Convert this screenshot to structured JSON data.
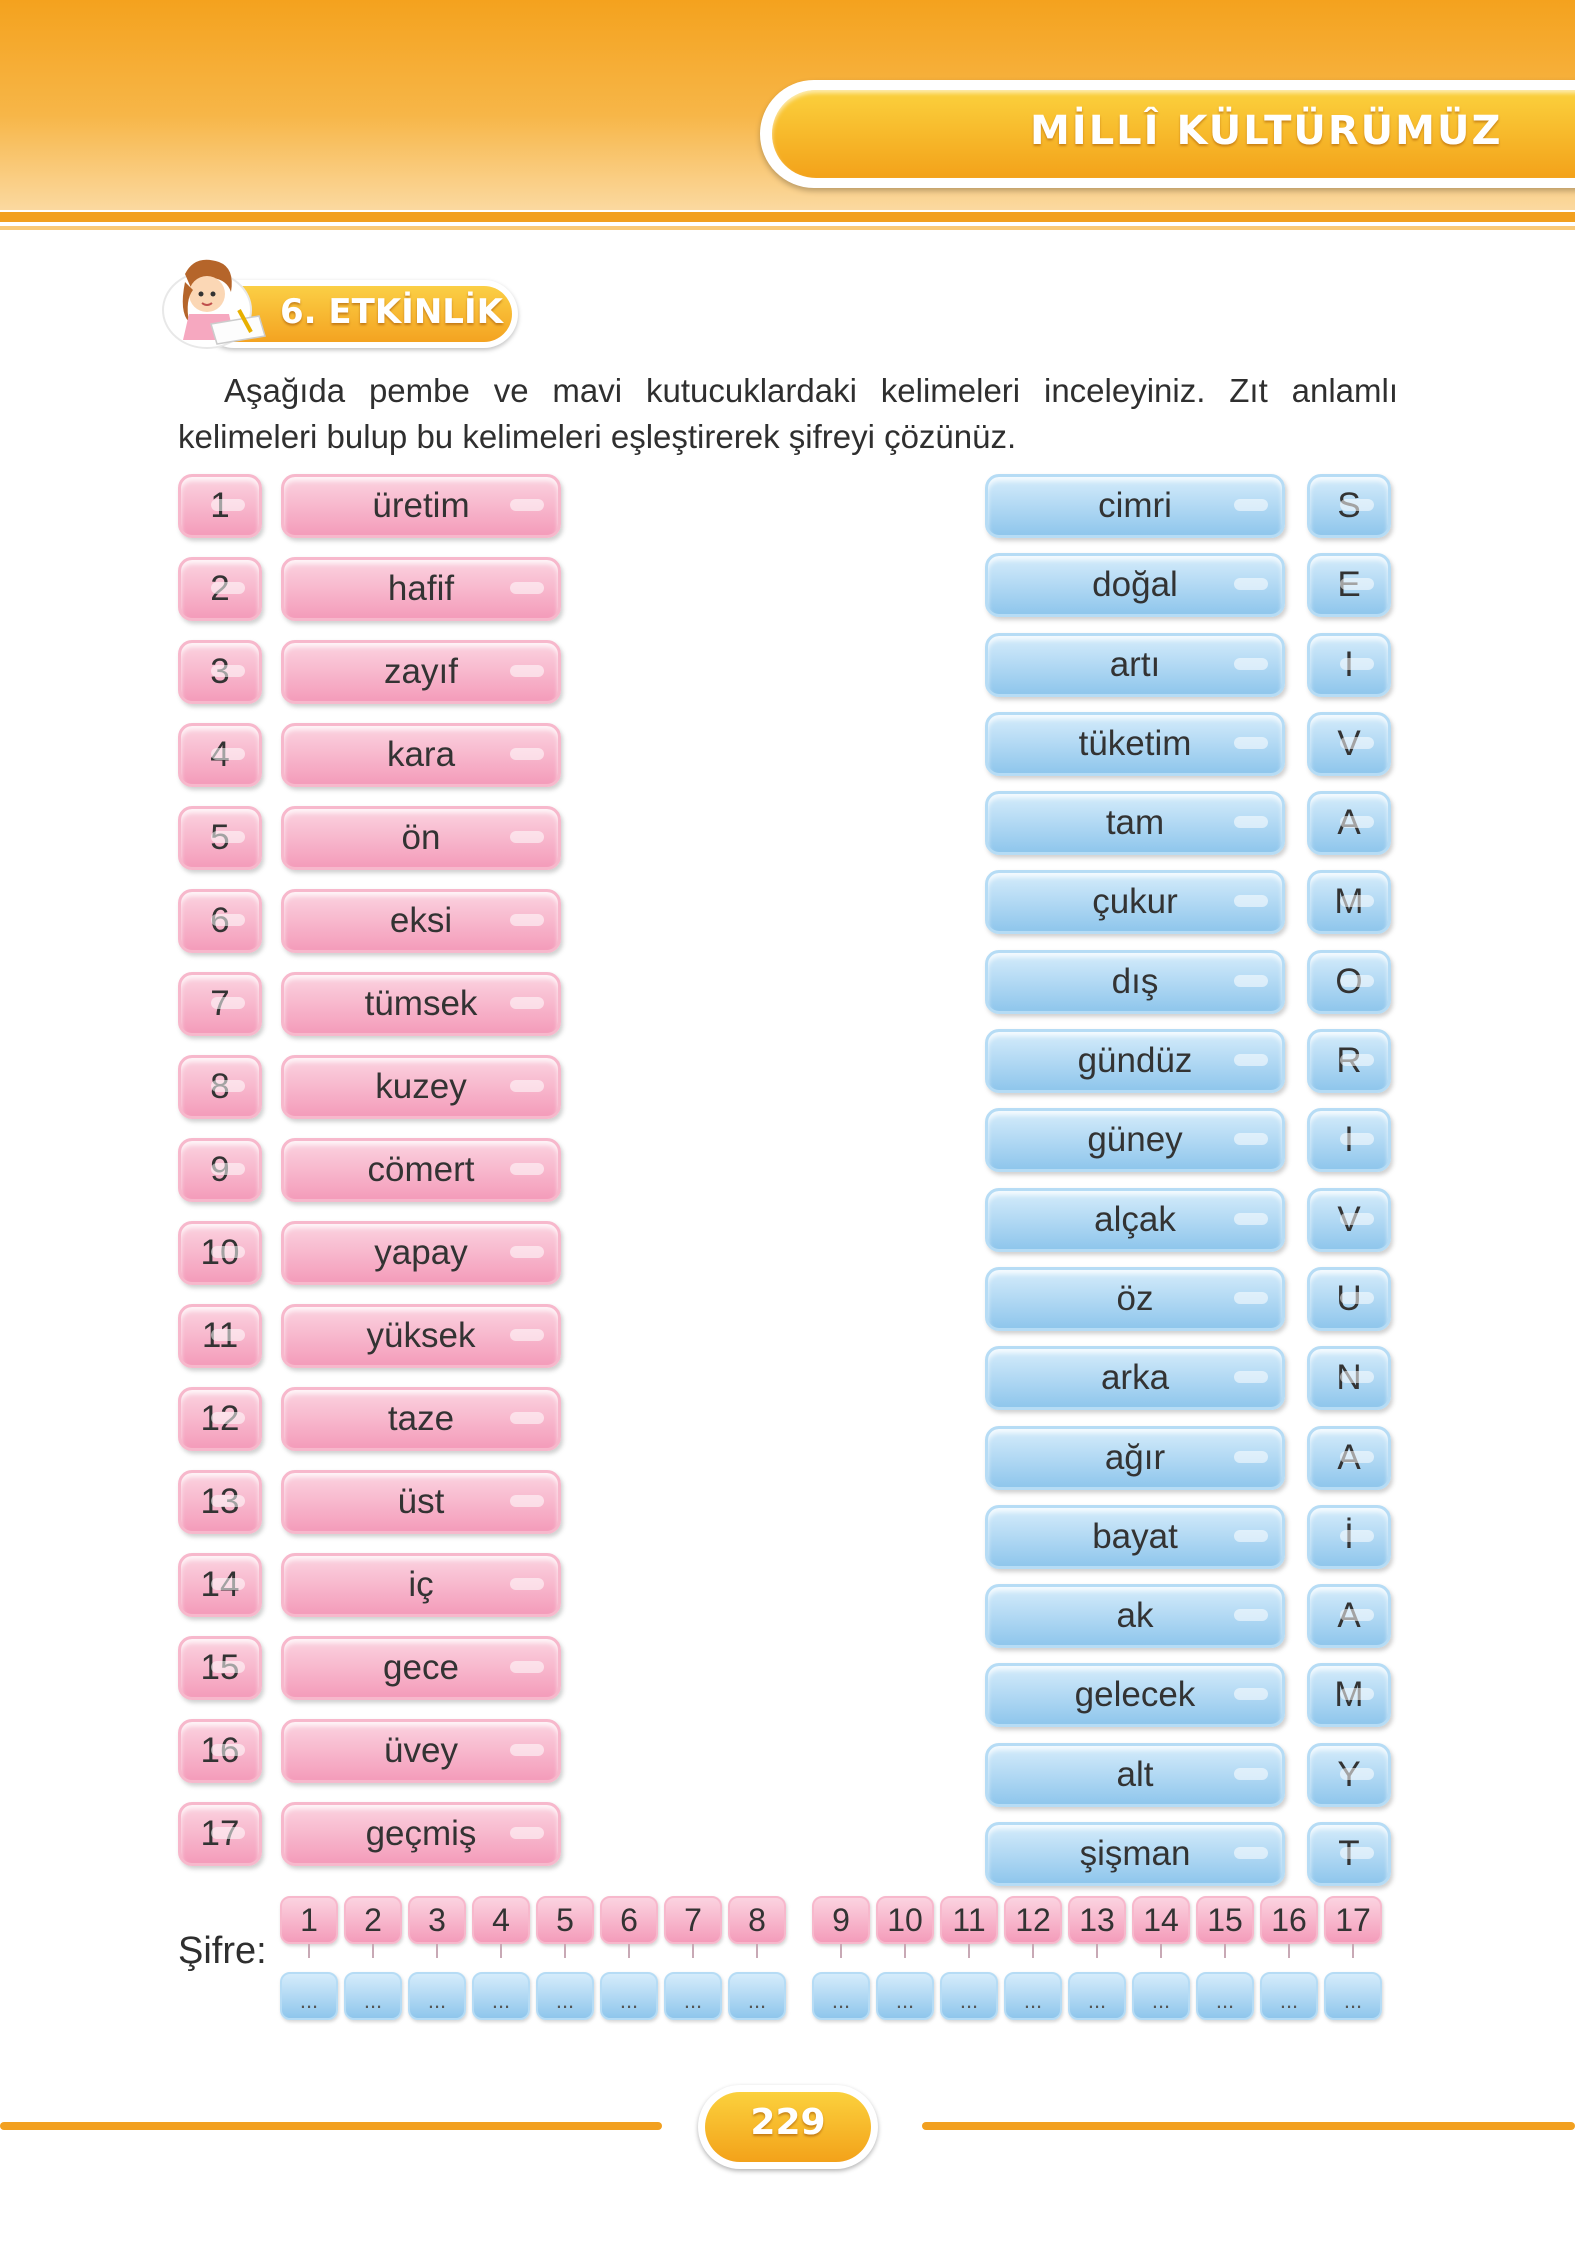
{
  "header": {
    "section_title": "MİLLÎ KÜLTÜRÜMÜZ"
  },
  "activity": {
    "label": "6. ETKİNLİK"
  },
  "instructions": "Aşağıda pembe ve mavi kutucuklardaki kelimeleri inceleyiniz. Zıt anlamlı kelimeleri bulup bu kelimeleri eşleştirerek şifreyi çözünüz.",
  "pink_items": [
    {
      "num": "1",
      "word": "üretim"
    },
    {
      "num": "2",
      "word": "hafif"
    },
    {
      "num": "3",
      "word": "zayıf"
    },
    {
      "num": "4",
      "word": "kara"
    },
    {
      "num": "5",
      "word": "ön"
    },
    {
      "num": "6",
      "word": "eksi"
    },
    {
      "num": "7",
      "word": "tümsek"
    },
    {
      "num": "8",
      "word": "kuzey"
    },
    {
      "num": "9",
      "word": "cömert"
    },
    {
      "num": "10",
      "word": "yapay"
    },
    {
      "num": "11",
      "word": "yüksek"
    },
    {
      "num": "12",
      "word": "taze"
    },
    {
      "num": "13",
      "word": "üst"
    },
    {
      "num": "14",
      "word": "iç"
    },
    {
      "num": "15",
      "word": "gece"
    },
    {
      "num": "16",
      "word": "üvey"
    },
    {
      "num": "17",
      "word": "geçmiş"
    }
  ],
  "blue_items": [
    {
      "word": "cimri",
      "letter": "S"
    },
    {
      "word": "doğal",
      "letter": "E"
    },
    {
      "word": "artı",
      "letter": "I"
    },
    {
      "word": "tüketim",
      "letter": "V"
    },
    {
      "word": "tam",
      "letter": "A"
    },
    {
      "word": "çukur",
      "letter": "M"
    },
    {
      "word": "dış",
      "letter": "O"
    },
    {
      "word": "gündüz",
      "letter": "R"
    },
    {
      "word": "güney",
      "letter": "I"
    },
    {
      "word": "alçak",
      "letter": "V"
    },
    {
      "word": "öz",
      "letter": "U"
    },
    {
      "word": "arka",
      "letter": "N"
    },
    {
      "word": "ağır",
      "letter": "A"
    },
    {
      "word": "bayat",
      "letter": "İ"
    },
    {
      "word": "ak",
      "letter": "A"
    },
    {
      "word": "gelecek",
      "letter": "M"
    },
    {
      "word": "alt",
      "letter": "Y"
    },
    {
      "word": "şişman",
      "letter": "T"
    }
  ],
  "cipher": {
    "label": "Şifre:",
    "numbers": [
      "1",
      "2",
      "3",
      "4",
      "5",
      "6",
      "7",
      "8",
      "9",
      "10",
      "11",
      "12",
      "13",
      "14",
      "15",
      "16",
      "17"
    ],
    "placeholder": "..."
  },
  "footer": {
    "page_number": "229"
  },
  "colors": {
    "orange": "#f2a020",
    "pink": "#f49cba",
    "blue": "#8fc6ec"
  }
}
